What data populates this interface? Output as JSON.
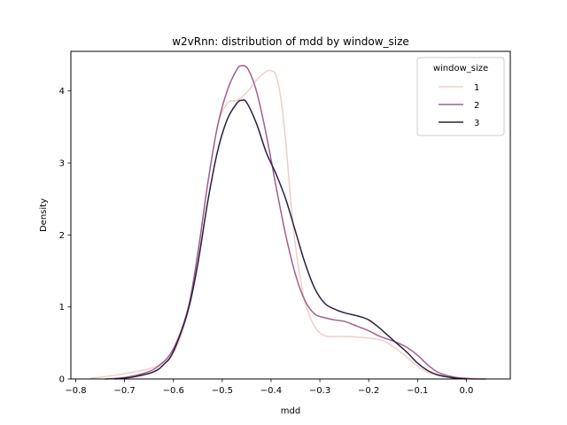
{
  "chart_data": {
    "type": "line",
    "title": "w2vRnn: distribution of mdd by window_size",
    "xlabel": "mdd",
    "ylabel": "Density",
    "xlim": [
      -0.81,
      0.09
    ],
    "ylim": [
      0,
      4.55
    ],
    "xticks": [
      -0.8,
      -0.7,
      -0.6,
      -0.5,
      -0.4,
      -0.3,
      -0.2,
      -0.1,
      0.0
    ],
    "xtick_labels": [
      "−0.8",
      "−0.7",
      "−0.6",
      "−0.5",
      "−0.4",
      "−0.3",
      "−0.2",
      "−0.1",
      "0.0"
    ],
    "yticks": [
      0,
      1,
      2,
      3,
      4
    ],
    "ytick_labels": [
      "0",
      "1",
      "2",
      "3",
      "4"
    ],
    "grid": false,
    "legend": {
      "title": "window_size",
      "position": "top-right"
    },
    "series": [
      {
        "name": "1",
        "color": "#efcfc8",
        "x": [
          -0.77,
          -0.72,
          -0.68,
          -0.64,
          -0.61,
          -0.59,
          -0.57,
          -0.55,
          -0.53,
          -0.51,
          -0.49,
          -0.47,
          -0.45,
          -0.43,
          -0.41,
          -0.4,
          -0.39,
          -0.38,
          -0.37,
          -0.36,
          -0.35,
          -0.34,
          -0.33,
          -0.31,
          -0.29,
          -0.27,
          -0.25,
          -0.22,
          -0.19,
          -0.17,
          -0.15,
          -0.13,
          -0.11,
          -0.09,
          -0.07,
          -0.05,
          -0.03,
          0.0,
          0.02
        ],
        "y": [
          0.01,
          0.05,
          0.1,
          0.16,
          0.3,
          0.5,
          0.95,
          1.7,
          2.7,
          3.5,
          3.83,
          3.87,
          3.98,
          4.15,
          4.27,
          4.28,
          4.22,
          3.9,
          3.3,
          2.5,
          1.85,
          1.4,
          1.05,
          0.72,
          0.6,
          0.59,
          0.59,
          0.58,
          0.56,
          0.53,
          0.45,
          0.35,
          0.23,
          0.13,
          0.07,
          0.04,
          0.02,
          0.005,
          0.0
        ]
      },
      {
        "name": "2",
        "color": "#a25f8f",
        "x": [
          -0.74,
          -0.7,
          -0.66,
          -0.63,
          -0.6,
          -0.57,
          -0.55,
          -0.53,
          -0.51,
          -0.49,
          -0.47,
          -0.46,
          -0.45,
          -0.44,
          -0.43,
          -0.42,
          -0.41,
          -0.4,
          -0.39,
          -0.37,
          -0.35,
          -0.33,
          -0.31,
          -0.29,
          -0.27,
          -0.25,
          -0.23,
          -0.2,
          -0.18,
          -0.16,
          -0.14,
          -0.12,
          -0.1,
          -0.08,
          -0.06,
          -0.04,
          -0.02,
          0.0,
          0.02,
          0.04
        ],
        "y": [
          0.0,
          0.02,
          0.08,
          0.18,
          0.42,
          0.98,
          1.75,
          2.7,
          3.5,
          4.0,
          4.3,
          4.35,
          4.33,
          4.2,
          4.0,
          3.72,
          3.4,
          3.05,
          2.68,
          2.0,
          1.45,
          1.08,
          0.9,
          0.85,
          0.82,
          0.8,
          0.75,
          0.67,
          0.6,
          0.55,
          0.5,
          0.43,
          0.33,
          0.2,
          0.1,
          0.05,
          0.02,
          0.01,
          0.0,
          0.0
        ]
      },
      {
        "name": "3",
        "color": "#2d1e3e",
        "x": [
          -0.72,
          -0.68,
          -0.64,
          -0.62,
          -0.6,
          -0.57,
          -0.55,
          -0.53,
          -0.51,
          -0.49,
          -0.47,
          -0.46,
          -0.45,
          -0.43,
          -0.41,
          -0.39,
          -0.37,
          -0.35,
          -0.33,
          -0.31,
          -0.29,
          -0.27,
          -0.25,
          -0.22,
          -0.2,
          -0.18,
          -0.16,
          -0.14,
          -0.12,
          -0.1,
          -0.08,
          -0.06,
          -0.04,
          -0.02,
          0.0
        ],
        "y": [
          0.0,
          0.03,
          0.1,
          0.2,
          0.38,
          0.95,
          1.6,
          2.45,
          3.15,
          3.6,
          3.83,
          3.87,
          3.84,
          3.55,
          3.15,
          2.85,
          2.5,
          2.05,
          1.6,
          1.25,
          1.05,
          0.97,
          0.92,
          0.87,
          0.82,
          0.72,
          0.6,
          0.48,
          0.36,
          0.22,
          0.12,
          0.06,
          0.03,
          0.01,
          0.0
        ]
      }
    ]
  }
}
